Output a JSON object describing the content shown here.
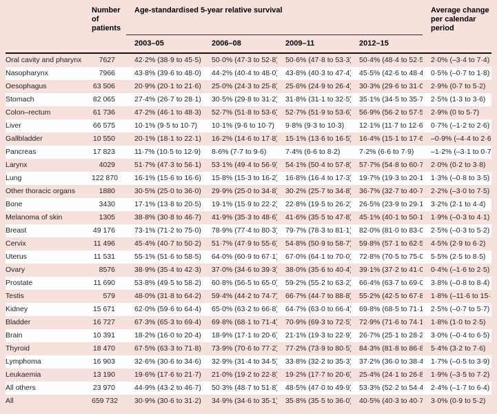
{
  "page": {
    "background_color": "#f7e1dc",
    "stripe_color": "#fffefe",
    "rule_color": "#101010"
  },
  "table": {
    "headers": {
      "patients": "Number of patients",
      "survival_group": "Age-standardised 5-year relative survival",
      "periods": [
        "2003–05",
        "2006–08",
        "2009–11",
        "2012–15"
      ],
      "avg_change": "Average change per calendar period"
    },
    "rows": [
      {
        "label": "Oral cavity and pharynx",
        "patients": "7627",
        "p2003_05": "42·2% (38·9 to 45·5)",
        "p2006_08": "50·0% (47·3 to 52·8)",
        "p2009_11": "50·6% (47·8 to 53·3)",
        "p2012_15": "50·4% (48·4 to 52·5)",
        "avg_change": "2·0% (–3·4 to 7·4)"
      },
      {
        "label": "Nasopharynx",
        "patients": "7966",
        "p2003_05": "43·8% (39·6 to 48·0)",
        "p2006_08": "44·2% (40·4 to 48·0)",
        "p2009_11": "43·8% (40·3 to 47·4)",
        "p2012_15": "45·5% (42·6 to 48·4)",
        "avg_change": "0·5% (–0·7 to 1·8)"
      },
      {
        "label": "Oesophagus",
        "patients": "63 506",
        "p2003_05": "20·9% (20·1 to 21·6)",
        "p2006_08": "25·0% (24·3 to 25·8)",
        "p2009_11": "25·6% (24·9 to 26·4)",
        "p2012_15": "30·3% (29·6 to 31·0)",
        "avg_change": "2·9% (0·7 to 5·2)"
      },
      {
        "label": "Stomach",
        "patients": "82 065",
        "p2003_05": "27·4% (26·7 to 28·1)",
        "p2006_08": "30·5% (29·8 to 31·2)",
        "p2009_11": "31·8% (31·1 to 32·5)",
        "p2012_15": "35·1% (34·5 to 35·7)",
        "avg_change": "2·5% (1·3 to 3·6)"
      },
      {
        "label": "Colon–rectum",
        "patients": "61 736",
        "p2003_05": "47·2% (46·1 to 48·3)",
        "p2006_08": "52·7% (51·8 to 53·6)",
        "p2009_11": "52·7% (51·9 to 53·6)",
        "p2012_15": "56·9% (56·2 to 57·5)",
        "avg_change": "2·9% (0 to 5·7)"
      },
      {
        "label": "Liver",
        "patients": "66 575",
        "p2003_05": "10·1% (9·5 to 10·7)",
        "p2006_08": "10·1% (9·6 to 10·7)",
        "p2009_11": "9·8% (9·3 to 10·3)",
        "p2012_15": "12·1% (11·7 to 12·6)",
        "avg_change": "0·7% (–1·2 to 2·6)"
      },
      {
        "label": "Gallbladder",
        "patients": "10 550",
        "p2003_05": "20·1% (18·1 to 22·1)",
        "p2006_08": "16·2% (14·6 to 17·8)",
        "p2009_11": "15·1% (13·6 to 16·5)",
        "p2012_15": "16·4% (15·1 to 17·6)",
        "avg_change": "–0·9% (–4·4 to 2·6)"
      },
      {
        "label": "Pancreas",
        "patients": "17 823",
        "p2003_05": "11·7% (10·5 to 12·9)",
        "p2006_08": "8·6% (7·7 to 9·6)",
        "p2009_11": "7·4% (6·6 to 8·2)",
        "p2012_15": "7·2% (6·6 to 7·9)",
        "avg_change": "–1·2% (–3·1 to 0·7)"
      },
      {
        "label": "Larynx",
        "patients": "4029",
        "p2003_05": "51·7% (47·3 to 56·1)",
        "p2006_08": "53·1% (49·4 to 56·9)",
        "p2009_11": "54·1% (50·4 to 57·8)",
        "p2012_15": "57·7% (54·8 to 60·7)",
        "avg_change": "2·0% (0·2 to 3·8)"
      },
      {
        "label": "Lung",
        "patients": "122 870",
        "p2003_05": "16·1% (15·6 to 16·6)",
        "p2006_08": "15·8% (15·3 to 16·2)",
        "p2009_11": "16·8% (16·4 to 17·3)",
        "p2012_15": "19·7% (19·3 to 20·1)",
        "avg_change": "1·3% (–0·8 to 3·5)"
      },
      {
        "label": "Other thoracic organs",
        "patients": "1880",
        "p2003_05": "30·5% (25·0 to 36·0)",
        "p2006_08": "29·9% (25·0 to 34·8)",
        "p2009_11": "30·2% (25·7 to 34·8)",
        "p2012_15": "36·7% (32·7 to 40·7)",
        "avg_change": "2·2% (–3·0 to 7·5)"
      },
      {
        "label": "Bone",
        "patients": "3430",
        "p2003_05": "17·1% (13·8 to 20·5)",
        "p2006_08": "19·1% (15·9 to 22·2)",
        "p2009_11": "22·8% (19·5 to 26·2)",
        "p2012_15": "26·5% (23·9 to 29·1)",
        "avg_change": "3·2% (2·1 to 4·4)"
      },
      {
        "label": "Melanoma of skin",
        "patients": "1305",
        "p2003_05": "38·8% (30·8 to 46·7)",
        "p2006_08": "41·9% (35·3 to 48·6)",
        "p2009_11": "41·6% (35·5 to 47·8)",
        "p2012_15": "45·1% (40·1 to 50·1)",
        "avg_change": "1·9% (–0·3 to 4·1)"
      },
      {
        "label": "Breast",
        "patients": "49 176",
        "p2003_05": "73·1% (71·2 to 75·0)",
        "p2006_08": "78·9% (77·4 to 80·3)",
        "p2009_11": "79·7% (78·3 to 81·1)",
        "p2012_15": "82·0% (81·0 to 83·0)",
        "avg_change": "2·5% (–0·3 to 5·2)"
      },
      {
        "label": "Cervix",
        "patients": "11 496",
        "p2003_05": "45·4% (40·7 to 50·2)",
        "p2006_08": "51·7% (47·9 to 55·6)",
        "p2009_11": "54·8% (50·9 to 58·7)",
        "p2012_15": "59·8% (57·1 to 62·5)",
        "avg_change": "4·5% (2·9 to 6·2)"
      },
      {
        "label": "Uterus",
        "patients": "11 531",
        "p2003_05": "55·1% (51·6 to 58·5)",
        "p2006_08": "64·0% (60·9 to 67·1)",
        "p2009_11": "67·0% (64·1 to 70·0)",
        "p2012_15": "72·8% (70·5 to 75·0)",
        "avg_change": "5·5% (2·5 to 8·5)"
      },
      {
        "label": "Ovary",
        "patients": "8576",
        "p2003_05": "38·9% (35·4 to 42·3)",
        "p2006_08": "37·0% (34·6 to 39·3)",
        "p2009_11": "38·0% (35·6 to 40·4)",
        "p2012_15": "39·1% (37·2 to 41·0)",
        "avg_change": "0·4% (–1·6 to 2·5)"
      },
      {
        "label": "Prostate",
        "patients": "11 690",
        "p2003_05": "53·8% (49·5 to 58·2)",
        "p2006_08": "60·8% (56·5 to 65·0)",
        "p2009_11": "59·2% (55·2 to 63·2)",
        "p2012_15": "66·4% (63·7 to 69·0)",
        "avg_change": "3·8% (–0·8 to 8·4)"
      },
      {
        "label": "Testis",
        "patients": "579",
        "p2003_05": "48·0% (31·8 to 64·2)",
        "p2006_08": "59·4% (44·2 to 74·7)",
        "p2009_11": "66·7% (44·7 to 88·8)",
        "p2012_15": "55·2% (42·5 to 67·8)",
        "avg_change": "1·8% (–11·6 to 15·1)"
      },
      {
        "label": "Kidney",
        "patients": "15 671",
        "p2003_05": "62·0% (59·6 to 64·4)",
        "p2006_08": "65·0% (63·2 to 66·8)",
        "p2009_11": "64·7% (63·0 to 66·4)",
        "p2012_15": "69·8% (68·5 to 71·1)",
        "avg_change": "2·5% (–0·7 to 5·7)"
      },
      {
        "label": "Bladder",
        "patients": "16 727",
        "p2003_05": "67·3% (65·3 to 69·4)",
        "p2006_08": "69·8% (68·1 to 71·4)",
        "p2009_11": "70·9% (69·3 to 72·5)",
        "p2012_15": "72·9% (71·6 to 74·1)",
        "avg_change": "1·8% (1·0 to 2·5)"
      },
      {
        "label": "Brain",
        "patients": "10 391",
        "p2003_05": "18·2% (16·0 to 20·4)",
        "p2006_08": "18·9% (17·1 to 20·6)",
        "p2009_11": "21·1% (19·3 to 22·9)",
        "p2012_15": "26·7% (25·1 to 28·2)",
        "avg_change": "3·0% (–0·4 to 6·5)"
      },
      {
        "label": "Thyroid",
        "patients": "18 470",
        "p2003_05": "67·5% (63·3 to 71·8)",
        "p2006_08": "73·9% (70·6 to 77·2)",
        "p2009_11": "77·2% (73·9 to 80·5)",
        "p2012_15": "84·3% (81·8 to 86·8)",
        "avg_change": "5·4% (3·2 to 7·6)"
      },
      {
        "label": "Lymphoma",
        "patients": "16 903",
        "p2003_05": "32·6% (30·6 to 34·6)",
        "p2006_08": "32·9% (31·4 to 34·5)",
        "p2009_11": "33·8% (32·2 to 35·3)",
        "p2012_15": "37·2% (36·0 to 38·4)",
        "avg_change": "1·7% (–0·5 to 3·9)"
      },
      {
        "label": "Leukaemia",
        "patients": "13 190",
        "p2003_05": "19·6% (17·6 to 21·7)",
        "p2006_08": "21·0% (19·2 to 22·8)",
        "p2009_11": "19·2% (17·7 to 20·6)",
        "p2012_15": "25·4% (24·1 to 26·8)",
        "avg_change": "1·9% (–3·5 to 7·2)"
      },
      {
        "label": "All others",
        "patients": "23 970",
        "p2003_05": "44·9% (43·2 to 46·7)",
        "p2006_08": "50·3% (48·7 to 51·8)",
        "p2009_11": "48·5% (47·0 to 49·9)",
        "p2012_15": "53·3% (52·2 to 54·4)",
        "avg_change": "2·4% (–1·7 to 6·4)"
      },
      {
        "label": "All",
        "patients": "659 732",
        "p2003_05": "30·9% (30·6 to 31·2)",
        "p2006_08": "34·9% (34·6 to 35·1)",
        "p2009_11": "35·8% (35·5 to 36·0)",
        "p2012_15": "40·5% (40·3 to 40·7)",
        "avg_change": "3·0% (0·9 to 5·2)"
      }
    ]
  }
}
